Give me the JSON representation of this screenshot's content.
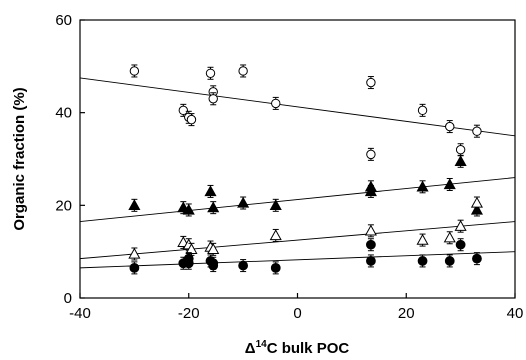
{
  "chart_data": {
    "type": "scatter",
    "xlabel_parts": {
      "delta": "Δ",
      "sup": "14",
      "rest": "C bulk POC"
    },
    "ylabel": "Organic fraction (%)",
    "xlim": [
      -40,
      40
    ],
    "ylim": [
      0,
      60
    ],
    "x_ticks": [
      -40,
      -20,
      0,
      20,
      40
    ],
    "y_ticks": [
      0,
      20,
      40,
      60
    ],
    "grid": false,
    "series": [
      {
        "marker": "open-circle",
        "x": [
          -30,
          -21,
          -20,
          -19.5,
          -16,
          -15.5,
          -15.5,
          -10,
          -4,
          13.5,
          13.5,
          23,
          28,
          30,
          33
        ],
        "y": [
          49,
          40.5,
          39,
          38.5,
          48.5,
          44.5,
          43,
          49,
          42,
          46.5,
          31,
          40.5,
          37,
          32,
          36
        ],
        "fit": {
          "x": [
            -40,
            40
          ],
          "y": [
            47.5,
            35
          ]
        }
      },
      {
        "marker": "filled-triangle",
        "x": [
          -30,
          -21,
          -20,
          -16,
          -15.5,
          -10,
          -4,
          13.5,
          13.5,
          23,
          28,
          30,
          33
        ],
        "y": [
          20,
          19.5,
          19,
          23,
          19.5,
          20.5,
          20,
          24,
          23,
          24,
          24.5,
          29.5,
          19
        ],
        "fit": {
          "x": [
            -40,
            40
          ],
          "y": [
            16.5,
            26
          ]
        }
      },
      {
        "marker": "open-triangle",
        "x": [
          -30,
          -21,
          -20,
          -19.5,
          -16,
          -15.5,
          -4,
          13.5,
          23,
          28,
          30,
          33
        ],
        "y": [
          9.5,
          12,
          11.5,
          10.5,
          11,
          10.5,
          13.5,
          14.5,
          12.5,
          13,
          15.5,
          20.5
        ],
        "fit": {
          "x": [
            -40,
            40
          ],
          "y": [
            8.5,
            16.5
          ]
        }
      },
      {
        "marker": "filled-circle",
        "x": [
          -30,
          -21,
          -20,
          -20,
          -16,
          -15.5,
          -15.5,
          -10,
          -4,
          13.5,
          13.5,
          23,
          28,
          30,
          33
        ],
        "y": [
          6.5,
          7.5,
          8.5,
          7.5,
          8,
          7.5,
          7,
          7,
          6.5,
          11.5,
          8,
          8,
          8,
          11.5,
          8.5
        ],
        "fit": {
          "x": [
            -40,
            40
          ],
          "y": [
            6.5,
            10
          ]
        }
      }
    ]
  }
}
